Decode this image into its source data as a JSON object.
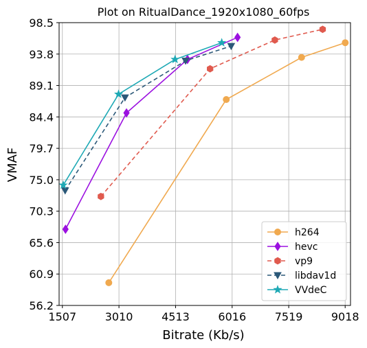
{
  "chart_data": {
    "type": "line",
    "title": "Plot on RitualDance_1920x1080_60fps",
    "xlabel": "Bitrate (Kb/s)",
    "ylabel": "VMAF",
    "xlim": [
      1420,
      9160
    ],
    "ylim": [
      56.2,
      98.5
    ],
    "xticks": [
      1507,
      3010,
      4513,
      6016,
      7519,
      9018
    ],
    "xtick_labels": [
      "1507",
      "3010",
      "4513",
      "6016",
      "7519",
      "9018"
    ],
    "yticks": [
      56.2,
      60.9,
      65.6,
      70.3,
      75.0,
      79.7,
      84.4,
      89.1,
      93.8,
      98.5
    ],
    "ytick_labels": [
      "56.2",
      "60.9",
      "65.6",
      "70.3",
      "75.0",
      "79.7",
      "84.4",
      "89.1",
      "93.8",
      "98.5"
    ],
    "grid": true,
    "legend_position": "lower-right",
    "series": [
      {
        "name": "h264",
        "color": "#f0a94f",
        "marker": "circle",
        "dash": "solid",
        "x": [
          2740,
          5860,
          7860,
          9020
        ],
        "y": [
          59.6,
          87.0,
          93.3,
          95.5
        ]
      },
      {
        "name": "hevc",
        "color": "#9b10e0",
        "marker": "diamond",
        "dash": "solid",
        "x": [
          1590,
          3210,
          4830,
          6160
        ],
        "y": [
          67.6,
          85.0,
          93.0,
          96.3
        ]
      },
      {
        "name": "vp9",
        "color": "#e05a4e",
        "marker": "hexagon",
        "dash": "dashed",
        "x": [
          2530,
          5430,
          7150,
          8420
        ],
        "y": [
          72.5,
          91.6,
          95.9,
          97.5
        ]
      },
      {
        "name": "libdav1d",
        "color": "#2b5878",
        "marker": "triangle-down",
        "dash": "dashed",
        "x": [
          1580,
          3170,
          4780,
          5990
        ],
        "y": [
          73.4,
          87.3,
          92.8,
          95.0
        ]
      },
      {
        "name": "VVdeC",
        "color": "#1ea9b5",
        "marker": "star",
        "dash": "solid",
        "x": [
          1530,
          3000,
          4500,
          5740
        ],
        "y": [
          74.2,
          87.8,
          93.0,
          95.5
        ]
      }
    ]
  }
}
